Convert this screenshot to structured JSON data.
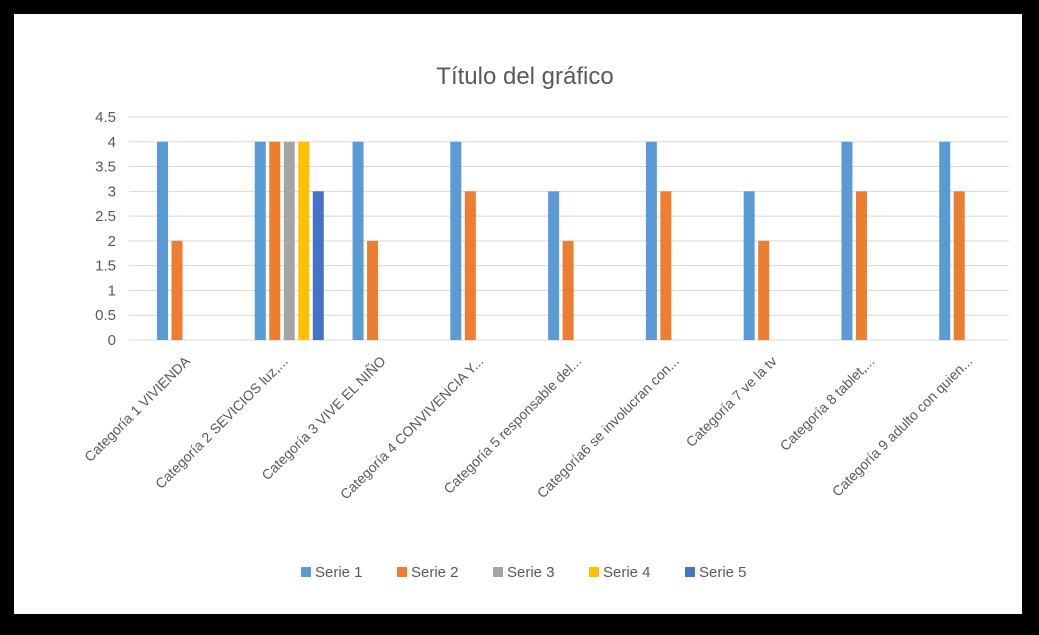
{
  "chart_data": {
    "type": "bar",
    "title": "Título del gráfico",
    "xlabel": "",
    "ylabel": "",
    "ylim": [
      0,
      4.5
    ],
    "y_ticks": [
      "0",
      "0.5",
      "1",
      "1.5",
      "2",
      "2.5",
      "3",
      "3.5",
      "4",
      "4.5"
    ],
    "grid": true,
    "legend_position": "bottom",
    "categories": [
      "Categoría 1 VIVIENDA",
      "Categoría 2 SEVICIOS luz,...",
      "Categoría 3 VIVE EL NIÑO",
      "Categoría 4  CONVIVENCIA Y...",
      "Categoría 5  responsable del...",
      "Categoría6 se involucran con...",
      "Categoría 7 ve la tv",
      "Categoría 8 tablet,...",
      "Categoría 9 adulto con quien..."
    ],
    "series": [
      {
        "name": "Serie 1",
        "color": "#5B9BD5",
        "values": [
          4,
          4,
          4,
          4,
          3,
          4,
          3,
          4,
          4
        ]
      },
      {
        "name": "Serie 2",
        "color": "#ED7D31",
        "values": [
          2,
          4,
          2,
          3,
          2,
          3,
          2,
          3,
          3
        ]
      },
      {
        "name": "Serie 3",
        "color": "#A5A5A5",
        "values": [
          null,
          4,
          null,
          null,
          null,
          null,
          null,
          null,
          null
        ]
      },
      {
        "name": "Serie 4",
        "color": "#FFC000",
        "values": [
          null,
          4,
          null,
          null,
          null,
          null,
          null,
          null,
          null
        ]
      },
      {
        "name": "Serie 5",
        "color": "#4472C4",
        "values": [
          null,
          3,
          null,
          null,
          null,
          null,
          null,
          null,
          null
        ]
      }
    ]
  }
}
